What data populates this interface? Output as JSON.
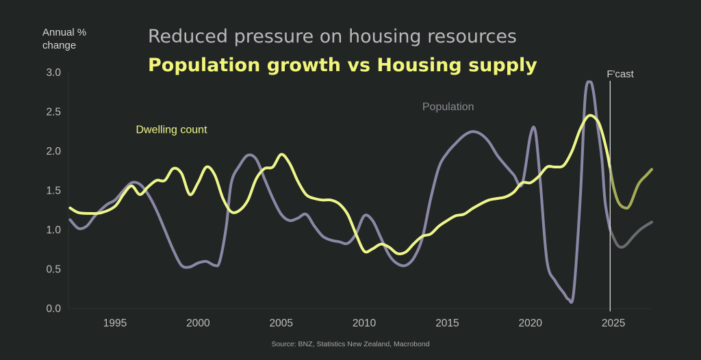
{
  "titles": {
    "line1": "Reduced pressure on housing resources",
    "line2": "Population growth vs Housing supply"
  },
  "source": "Source: BNZ, Statistics New Zealand, Macrobond",
  "colors": {
    "background": "#212624",
    "dwelling": "#eef58a",
    "dwelling_forecast": "#a6ad58",
    "population": "#8a88a6",
    "population_forecast": "#6a6c72",
    "forecast_line": "#d9d9d9"
  },
  "chart_data": {
    "type": "line",
    "title": "Reduced pressure on housing resources",
    "subtitle": "Population growth vs Housing supply",
    "xlabel": "",
    "ylabel": "Annual % change",
    "ylim": [
      0,
      3.0
    ],
    "xlim": [
      1992.2,
      2027.3
    ],
    "yticks": [
      "0.0",
      "0.5",
      "1.0",
      "1.5",
      "2.0",
      "2.5",
      "3.0"
    ],
    "xticks": [
      "1995",
      "2000",
      "2005",
      "2010",
      "2015",
      "2020",
      "2025"
    ],
    "grid": false,
    "forecast_start": 2024.8,
    "forecast_label": "F'cast",
    "series": [
      {
        "name": "Dwelling count",
        "label_at": [
          1998.4,
          2.23
        ],
        "x": [
          1992.3,
          1992.8,
          1993.5,
          1994.2,
          1995.0,
          1995.5,
          1996.0,
          1996.5,
          1997.0,
          1997.5,
          1998.0,
          1998.5,
          1999.0,
          1999.5,
          2000.0,
          2000.5,
          2001.0,
          2001.5,
          2002.0,
          2002.5,
          2003.0,
          2003.5,
          2004.0,
          2004.5,
          2005.0,
          2005.5,
          2006.0,
          2006.5,
          2007.0,
          2007.5,
          2008.0,
          2008.5,
          2009.0,
          2009.5,
          2010.0,
          2010.5,
          2011.0,
          2011.5,
          2012.0,
          2012.5,
          2013.0,
          2013.5,
          2014.0,
          2014.5,
          2015.0,
          2015.5,
          2016.0,
          2016.5,
          2017.0,
          2017.5,
          2018.0,
          2018.5,
          2019.0,
          2019.5,
          2020.0,
          2020.5,
          2021.0,
          2021.5,
          2022.0,
          2022.5,
          2023.0,
          2023.5,
          2024.0,
          2024.3,
          2024.6,
          2024.8
        ],
        "y": [
          1.28,
          1.22,
          1.21,
          1.22,
          1.3,
          1.45,
          1.56,
          1.45,
          1.55,
          1.63,
          1.63,
          1.78,
          1.72,
          1.45,
          1.6,
          1.8,
          1.7,
          1.4,
          1.23,
          1.25,
          1.38,
          1.65,
          1.78,
          1.8,
          1.96,
          1.85,
          1.62,
          1.45,
          1.4,
          1.38,
          1.38,
          1.33,
          1.2,
          0.95,
          0.73,
          0.76,
          0.82,
          0.78,
          0.7,
          0.72,
          0.83,
          0.92,
          0.95,
          1.05,
          1.12,
          1.18,
          1.2,
          1.27,
          1.33,
          1.38,
          1.4,
          1.42,
          1.48,
          1.6,
          1.6,
          1.68,
          1.8,
          1.8,
          1.82,
          2.0,
          2.28,
          2.45,
          2.4,
          2.25,
          2.0,
          1.78
        ]
      },
      {
        "name": "Dwelling count forecast",
        "x": [
          2024.8,
          2025.0,
          2025.3,
          2025.7,
          2026.0,
          2026.5,
          2027.0,
          2027.3
        ],
        "y": [
          1.78,
          1.55,
          1.35,
          1.28,
          1.32,
          1.58,
          1.7,
          1.77
        ]
      },
      {
        "name": "Population",
        "label_at": [
          2016.7,
          2.52
        ],
        "x": [
          1992.3,
          1992.8,
          1993.3,
          1993.8,
          1994.5,
          1995.0,
          1995.5,
          1996.0,
          1996.5,
          1997.0,
          1997.5,
          1998.0,
          1998.5,
          1999.0,
          1999.5,
          2000.0,
          2000.5,
          2001.0,
          2001.3,
          2001.7,
          2002.0,
          2002.5,
          2003.0,
          2003.5,
          2004.0,
          2004.5,
          2005.0,
          2005.5,
          2006.0,
          2006.5,
          2007.0,
          2007.5,
          2008.0,
          2008.5,
          2009.0,
          2009.5,
          2010.0,
          2010.5,
          2011.0,
          2011.5,
          2012.0,
          2012.5,
          2013.0,
          2013.5,
          2014.0,
          2014.5,
          2015.0,
          2015.5,
          2016.0,
          2016.5,
          2017.0,
          2017.5,
          2018.0,
          2018.5,
          2019.0,
          2019.5,
          2020.0,
          2020.3,
          2020.6,
          2021.0,
          2021.5,
          2022.0,
          2022.3,
          2022.6,
          2023.0,
          2023.3,
          2023.6,
          2023.8,
          2024.0,
          2024.3,
          2024.5,
          2024.8
        ],
        "y": [
          1.13,
          1.02,
          1.05,
          1.18,
          1.32,
          1.38,
          1.5,
          1.6,
          1.58,
          1.45,
          1.25,
          1.0,
          0.75,
          0.55,
          0.53,
          0.58,
          0.6,
          0.55,
          0.6,
          1.05,
          1.6,
          1.82,
          1.95,
          1.9,
          1.65,
          1.4,
          1.2,
          1.12,
          1.15,
          1.2,
          1.05,
          0.92,
          0.87,
          0.85,
          0.83,
          0.95,
          1.18,
          1.12,
          0.9,
          0.68,
          0.57,
          0.55,
          0.65,
          0.9,
          1.4,
          1.8,
          1.98,
          2.1,
          2.2,
          2.25,
          2.22,
          2.12,
          1.95,
          1.82,
          1.7,
          1.58,
          2.2,
          2.25,
          1.6,
          0.6,
          0.35,
          0.2,
          0.12,
          0.2,
          1.4,
          2.7,
          2.88,
          2.75,
          2.4,
          1.9,
          1.35,
          1.0
        ]
      },
      {
        "name": "Population forecast",
        "x": [
          2024.8,
          2025.2,
          2025.5,
          2025.8,
          2026.2,
          2026.7,
          2027.3
        ],
        "y": [
          1.0,
          0.82,
          0.78,
          0.82,
          0.92,
          1.02,
          1.1
        ]
      }
    ]
  }
}
